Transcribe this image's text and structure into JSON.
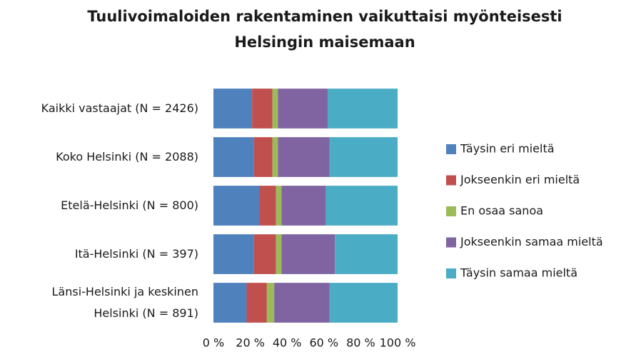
{
  "chart_data": {
    "type": "stacked_barh",
    "title": "Tuulivoimaloiden rakentaminen vaikuttaisi myönteisesti Helsingin maisemaan",
    "categories": [
      "Kaikki vastaajat (N = 2426)",
      "Koko Helsinki (N = 2088)",
      "Etelä-Helsinki (N = 800)",
      "Itä-Helsinki (N = 397)",
      "Länsi-Helsinki ja keskinen Helsinki (N = 891)"
    ],
    "series": [
      {
        "name": "Täysin eri mieltä",
        "color": "#4f81bd",
        "values": [
          21,
          22,
          25,
          22,
          18
        ]
      },
      {
        "name": "Jokseenkin eri mieltä",
        "color": "#c0504d",
        "values": [
          11,
          10,
          9,
          12,
          11
        ]
      },
      {
        "name": "En osaa sanoa",
        "color": "#9bbb59",
        "values": [
          3,
          3,
          3,
          3,
          4
        ]
      },
      {
        "name": "Jokseenkin samaa mieltä",
        "color": "#8064a2",
        "values": [
          27,
          28,
          24,
          29,
          30
        ]
      },
      {
        "name": "Täysin samaa mieltä",
        "color": "#4bacc6",
        "values": [
          38,
          37,
          39,
          34,
          37
        ]
      }
    ],
    "xlim": [
      0,
      100
    ],
    "xticks": [
      {
        "value": 0,
        "label": "0 %"
      },
      {
        "value": 20,
        "label": "20 %"
      },
      {
        "value": 40,
        "label": "40 %"
      },
      {
        "value": 60,
        "label": "60 %"
      },
      {
        "value": 80,
        "label": "80 %"
      },
      {
        "value": 100,
        "label": "100 %"
      }
    ],
    "legend": "right"
  }
}
